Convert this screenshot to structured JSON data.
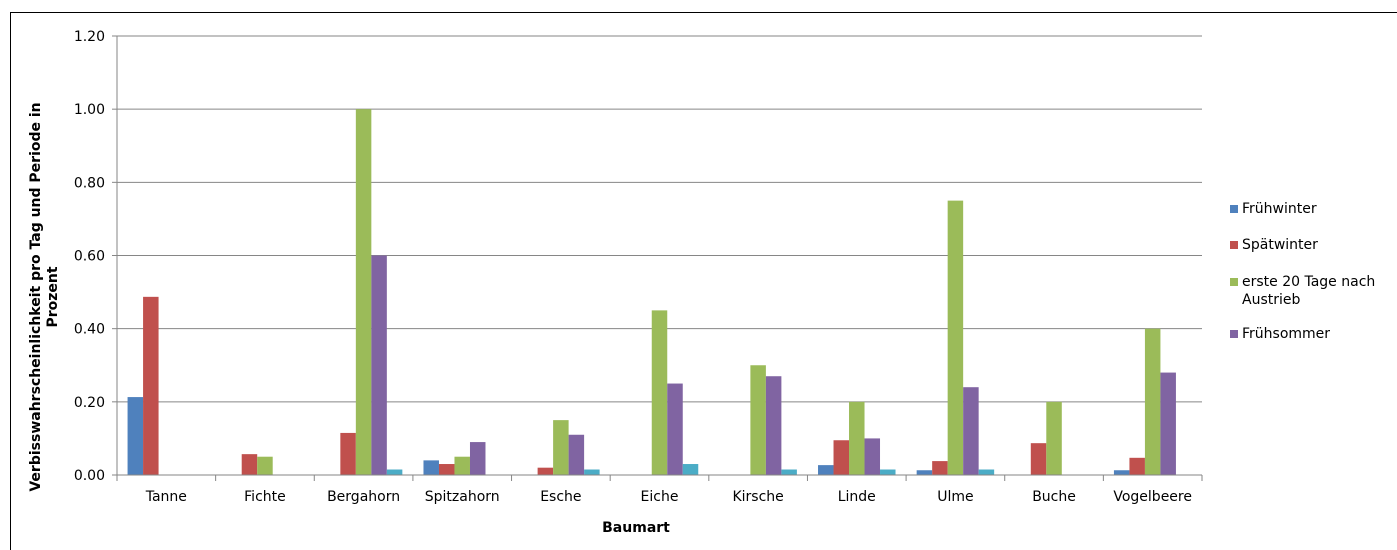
{
  "chart_data": {
    "type": "bar",
    "title": "",
    "xlabel": "Baumart",
    "ylabel": [
      "Verbisswahrscheinlichkeit pro Tag und Periode in",
      "Prozent"
    ],
    "ylim": [
      0,
      1.2
    ],
    "yticks": [
      "0.00",
      "0.20",
      "0.40",
      "0.60",
      "0.80",
      "1.00",
      "1.20"
    ],
    "grid": true,
    "legend_position": "right",
    "categories": [
      "Tanne",
      "Fichte",
      "Bergahorn",
      "Spitzahorn",
      "Esche",
      "Eiche",
      "Kirsche",
      "Linde",
      "Ulme",
      "Buche",
      "Vogelbeere"
    ],
    "series": [
      {
        "name": "Frühwinter",
        "color": "#4f81bd",
        "values": [
          0.213,
          0,
          0,
          0.04,
          0,
          0,
          0,
          0.027,
          0.013,
          0,
          0.013
        ]
      },
      {
        "name": "Spätwinter",
        "color": "#c0504d",
        "values": [
          0.487,
          0.057,
          0.115,
          0.03,
          0.02,
          0,
          0,
          0.095,
          0.038,
          0.087,
          0.047
        ]
      },
      {
        "name": "erste 20 Tage nach Austrieb",
        "legend_lines": [
          "erste 20 Tage nach",
          "Austrieb"
        ],
        "color": "#9bbb59",
        "values": [
          0,
          0.05,
          1.0,
          0.05,
          0.15,
          0.45,
          0.3,
          0.2,
          0.75,
          0.2,
          0.4
        ]
      },
      {
        "name": "Frühsommer",
        "color": "#8064a2",
        "values": [
          0,
          0,
          0.6,
          0.09,
          0.11,
          0.25,
          0.27,
          0.1,
          0.24,
          0,
          0.28
        ]
      },
      {
        "name": "",
        "color": "#4bacc6",
        "in_legend": false,
        "values": [
          0,
          0,
          0.015,
          0,
          0.015,
          0.03,
          0.015,
          0.015,
          0.015,
          0,
          0
        ]
      }
    ]
  }
}
